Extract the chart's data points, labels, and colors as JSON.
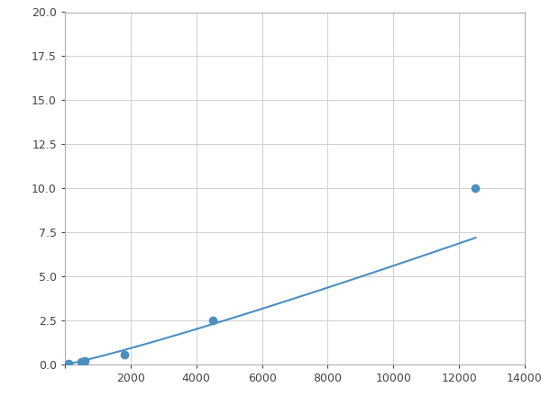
{
  "x": [
    100,
    500,
    600,
    1800,
    4500,
    12500
  ],
  "y": [
    0.05,
    0.15,
    0.2,
    0.55,
    2.5,
    10.0
  ],
  "line_color": "#4a8fc0",
  "marker_color": "#4a8fc0",
  "marker_size": 6,
  "marker_style": "o",
  "line_width": 1.5,
  "xlim": [
    0,
    14000
  ],
  "ylim": [
    0,
    20.0
  ],
  "xticks": [
    0,
    2000,
    4000,
    6000,
    8000,
    10000,
    12000,
    14000
  ],
  "yticks": [
    0.0,
    2.5,
    5.0,
    7.5,
    10.0,
    12.5,
    15.0,
    17.5,
    20.0
  ],
  "grid_color": "#d0d0d0",
  "background_color": "#ffffff",
  "fig_background": "#ffffff"
}
